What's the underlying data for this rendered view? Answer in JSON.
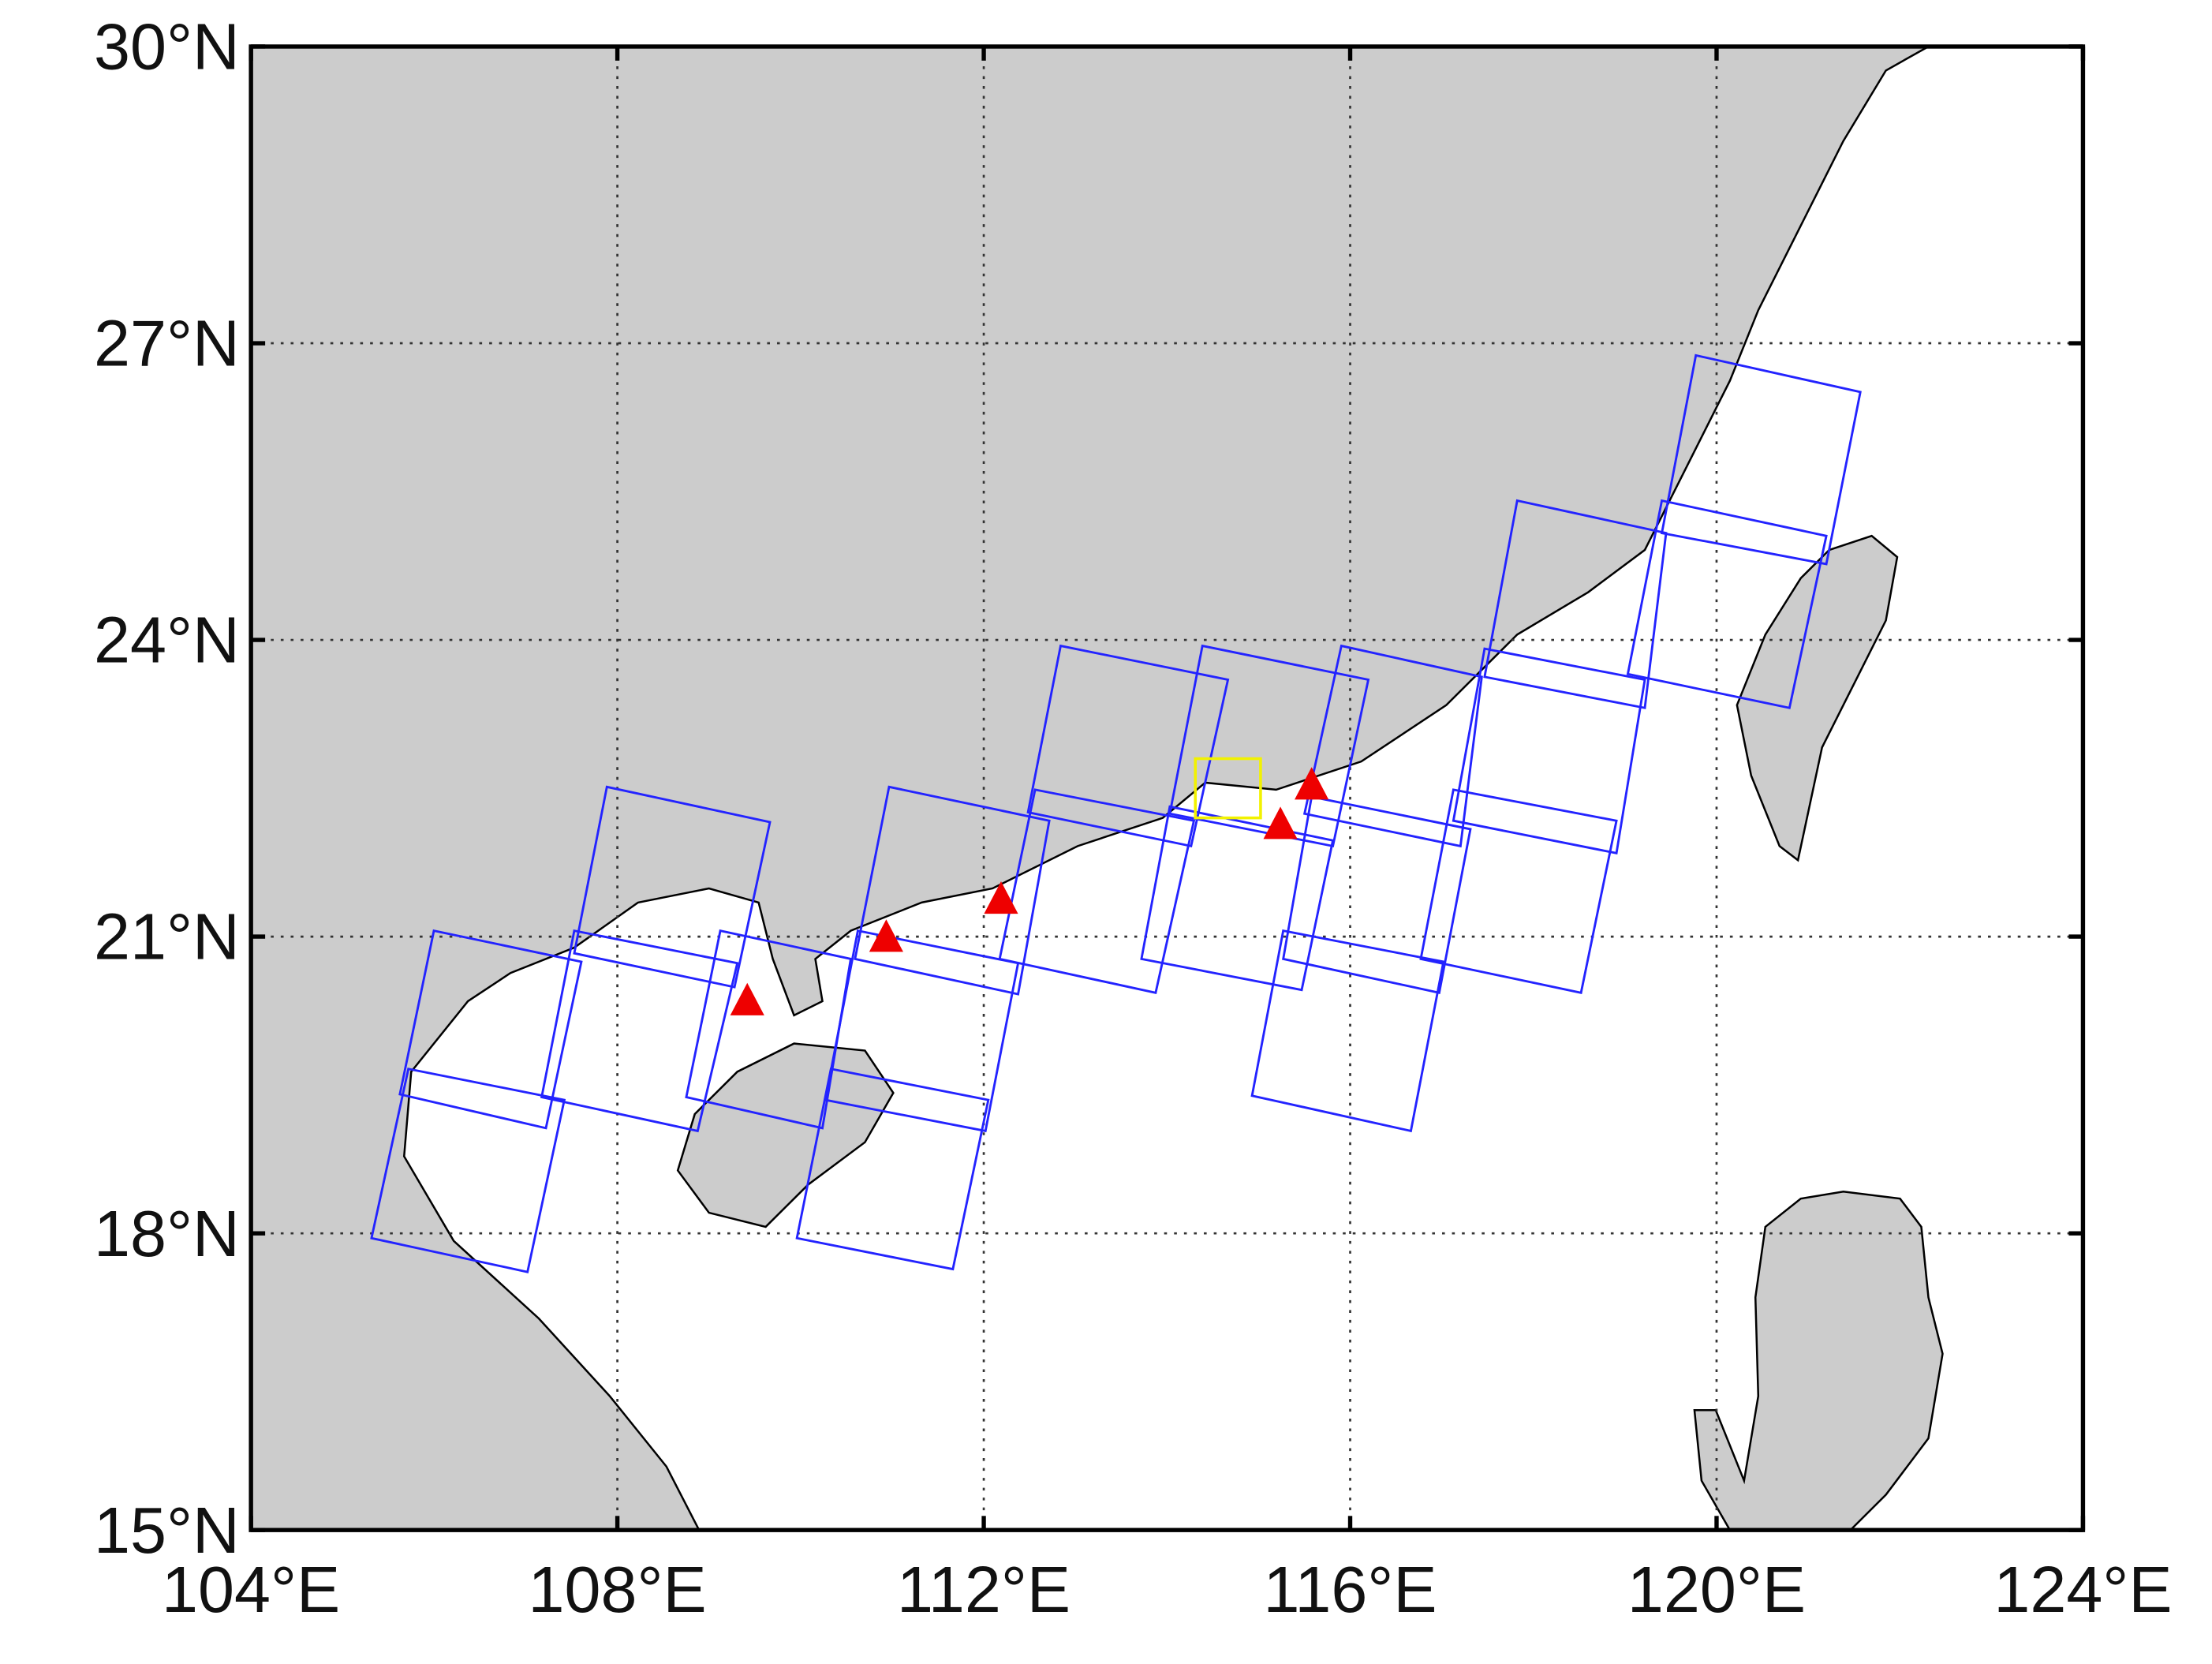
{
  "map": {
    "xlim": [
      104,
      124
    ],
    "ylim": [
      15,
      30
    ],
    "xticks": [
      {
        "value": 104,
        "label": "104°E"
      },
      {
        "value": 108,
        "label": "108°E"
      },
      {
        "value": 112,
        "label": "112°E"
      },
      {
        "value": 116,
        "label": "116°E"
      },
      {
        "value": 120,
        "label": "120°E"
      },
      {
        "value": 124,
        "label": "124°E"
      }
    ],
    "yticks": [
      {
        "value": 15,
        "label": "15°N"
      },
      {
        "value": 18,
        "label": "18°N"
      },
      {
        "value": 21,
        "label": "21°N"
      },
      {
        "value": 24,
        "label": "24°N"
      },
      {
        "value": 27,
        "label": "27°N"
      },
      {
        "value": 30,
        "label": "30°N"
      }
    ]
  }
}
